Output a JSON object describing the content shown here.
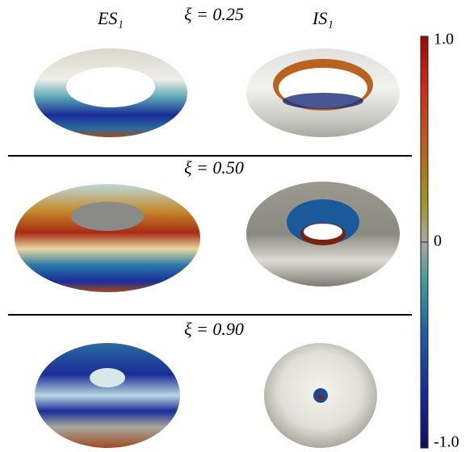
{
  "labels": {
    "left": "ES₁",
    "right": "IS₁"
  },
  "panels": [
    {
      "xi": "ξ = 0.25"
    },
    {
      "xi": "ξ = 0.50"
    },
    {
      "xi": "ξ = 0.90"
    }
  ],
  "colorbar": {
    "lim": [
      -1,
      1
    ],
    "ticks": [
      {
        "value": 1,
        "label": "1.0"
      },
      0,
      {
        "value": -1,
        "label": "-1.0"
      }
    ]
  }
}
